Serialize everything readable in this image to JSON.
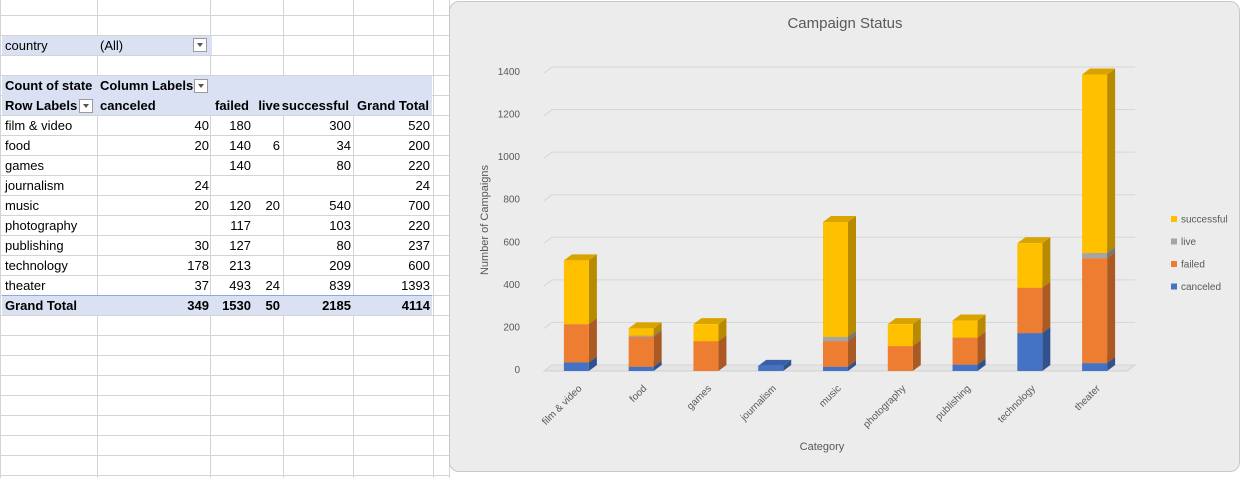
{
  "pivot": {
    "filter_label": "country",
    "filter_value": "(All)",
    "corner_label": "Count of state",
    "column_labels": "Column Labels",
    "row_labels": "Row Labels",
    "columns": [
      "canceled",
      "failed",
      "live",
      "successful",
      "Grand Total"
    ],
    "rows": [
      {
        "label": "film & video",
        "values": [
          "40",
          "180",
          "",
          "300",
          "520"
        ]
      },
      {
        "label": "food",
        "values": [
          "20",
          "140",
          "6",
          "34",
          "200"
        ]
      },
      {
        "label": "games",
        "values": [
          "",
          "140",
          "",
          "80",
          "220"
        ]
      },
      {
        "label": "journalism",
        "values": [
          "24",
          "",
          "",
          "",
          "24"
        ]
      },
      {
        "label": "music",
        "values": [
          "20",
          "120",
          "20",
          "540",
          "700"
        ]
      },
      {
        "label": "photography",
        "values": [
          "",
          "117",
          "",
          "103",
          "220"
        ]
      },
      {
        "label": "publishing",
        "values": [
          "30",
          "127",
          "",
          "80",
          "237"
        ]
      },
      {
        "label": "technology",
        "values": [
          "178",
          "213",
          "",
          "209",
          "600"
        ]
      },
      {
        "label": "theater",
        "values": [
          "37",
          "493",
          "24",
          "839",
          "1393"
        ]
      }
    ],
    "total": {
      "label": "Grand Total",
      "values": [
        "349",
        "1530",
        "50",
        "2185",
        "4114"
      ]
    }
  },
  "chart_data": {
    "type": "bar",
    "stacked": true,
    "title": "Campaign Status",
    "xlabel": "Category",
    "ylabel": "Number of Campaigns",
    "categories": [
      "film & video",
      "food",
      "games",
      "journalism",
      "music",
      "photography",
      "publishing",
      "technology",
      "theater"
    ],
    "series": [
      {
        "name": "canceled",
        "color": "#4472c4",
        "values": [
          40,
          20,
          0,
          24,
          20,
          0,
          30,
          178,
          37
        ]
      },
      {
        "name": "failed",
        "color": "#ed7d31",
        "values": [
          180,
          140,
          140,
          0,
          120,
          117,
          127,
          213,
          493
        ]
      },
      {
        "name": "live",
        "color": "#a5a5a5",
        "values": [
          0,
          6,
          0,
          0,
          20,
          0,
          0,
          0,
          24
        ]
      },
      {
        "name": "successful",
        "color": "#ffc000",
        "values": [
          300,
          34,
          80,
          0,
          540,
          103,
          80,
          209,
          839
        ]
      }
    ],
    "yticks": [
      0,
      200,
      400,
      600,
      800,
      1000,
      1200,
      1400
    ],
    "ylim": [
      0,
      1400
    ],
    "grid": true,
    "legend_position": "right"
  }
}
